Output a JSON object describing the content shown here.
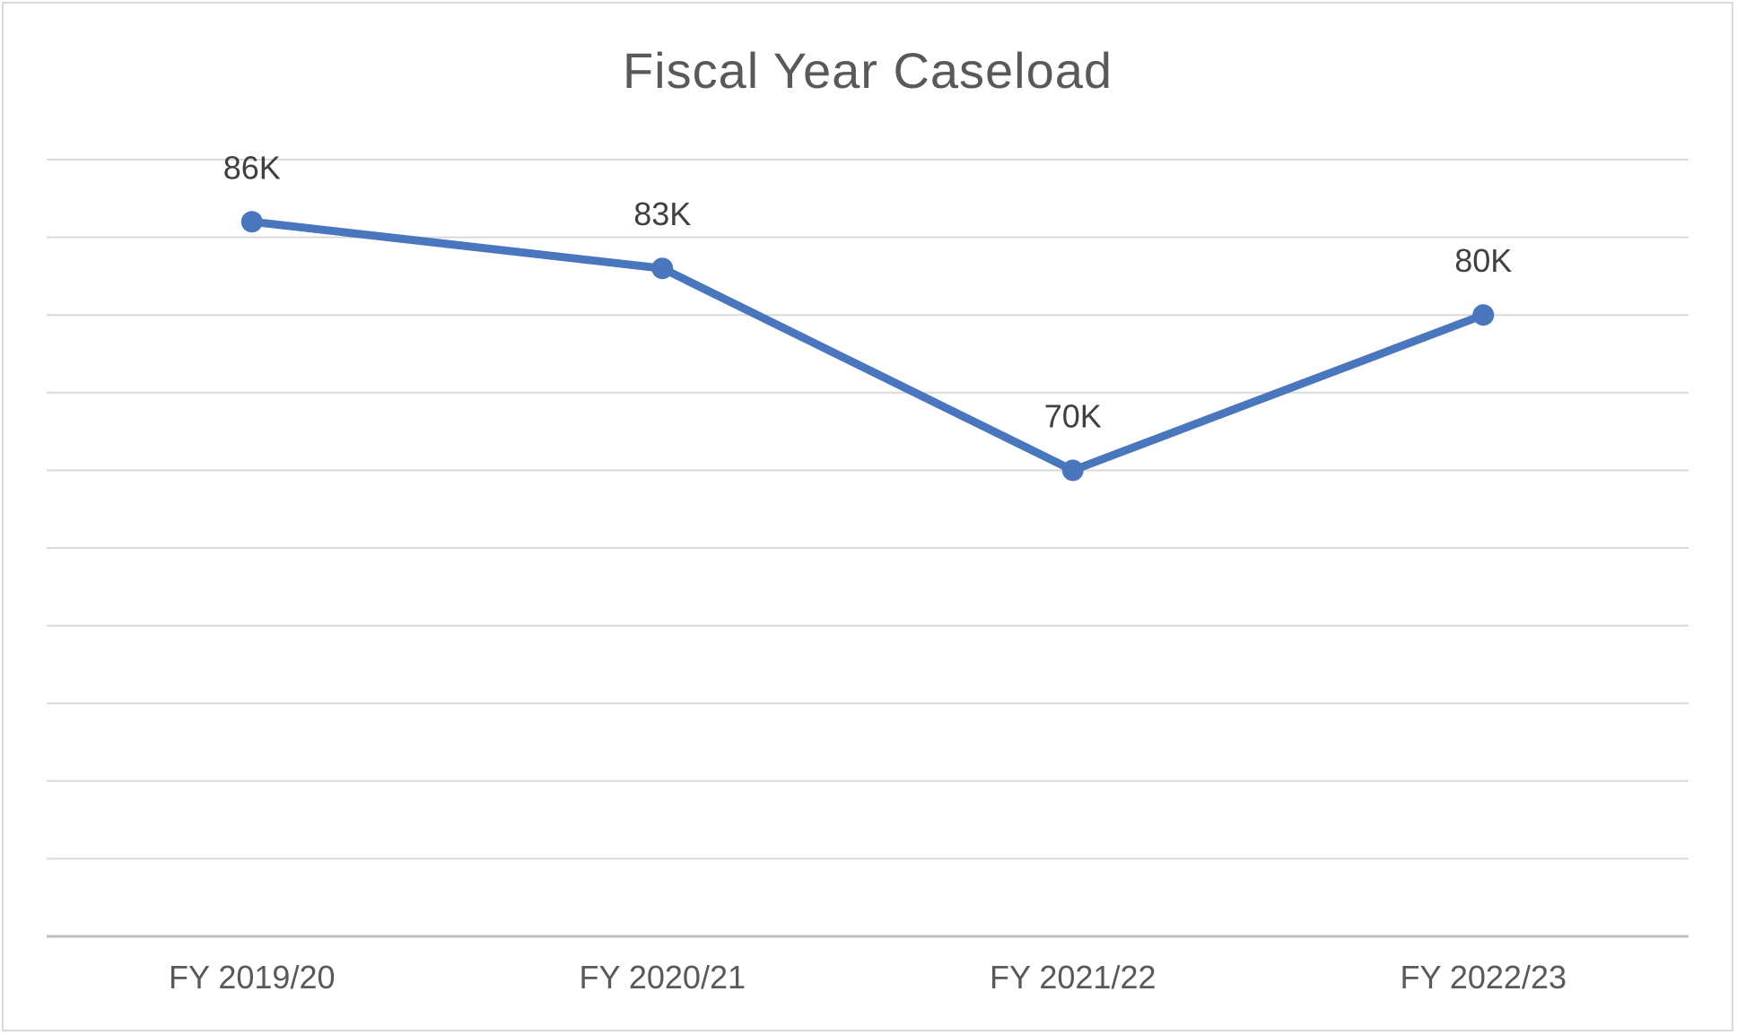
{
  "chart_data": {
    "type": "line",
    "title": "Fiscal Year Caseload",
    "categories": [
      "FY 2019/20",
      "FY 2020/21",
      "FY 2021/22",
      "FY 2022/23"
    ],
    "series": [
      {
        "values": [
          86,
          83,
          70,
          80
        ],
        "data_labels": [
          "86K",
          "83K",
          "70K",
          "80K"
        ],
        "color": "#4a76bd"
      }
    ],
    "xlabel": "",
    "ylabel": "",
    "ylim": [
      40,
      90
    ],
    "gridline_step": 5,
    "grid": true,
    "legend": "none",
    "colors": {
      "line": "#4a76bd",
      "grid": "#d9d9d9",
      "axis": "#bfbfbf",
      "text": "#595959"
    }
  }
}
